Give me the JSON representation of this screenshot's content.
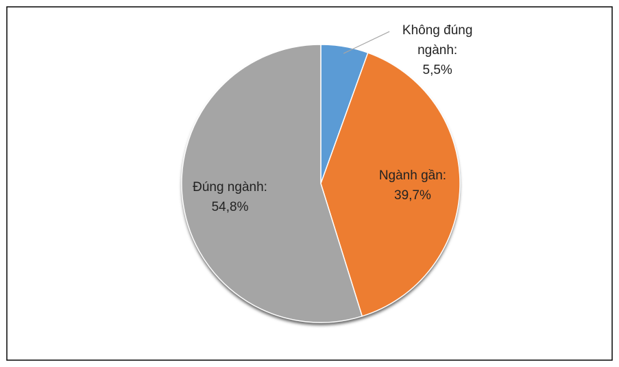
{
  "chart_data": {
    "type": "pie",
    "categories": [
      "Không đúng ngành:",
      "Ngành gần:",
      "Đúng ngành:"
    ],
    "values": [
      5.5,
      39.7,
      54.8
    ],
    "value_labels": [
      "5,5%",
      "39,7%",
      "54,8%"
    ],
    "colors": [
      "#5b9bd5",
      "#ed7d31",
      "#a5a5a5"
    ]
  }
}
